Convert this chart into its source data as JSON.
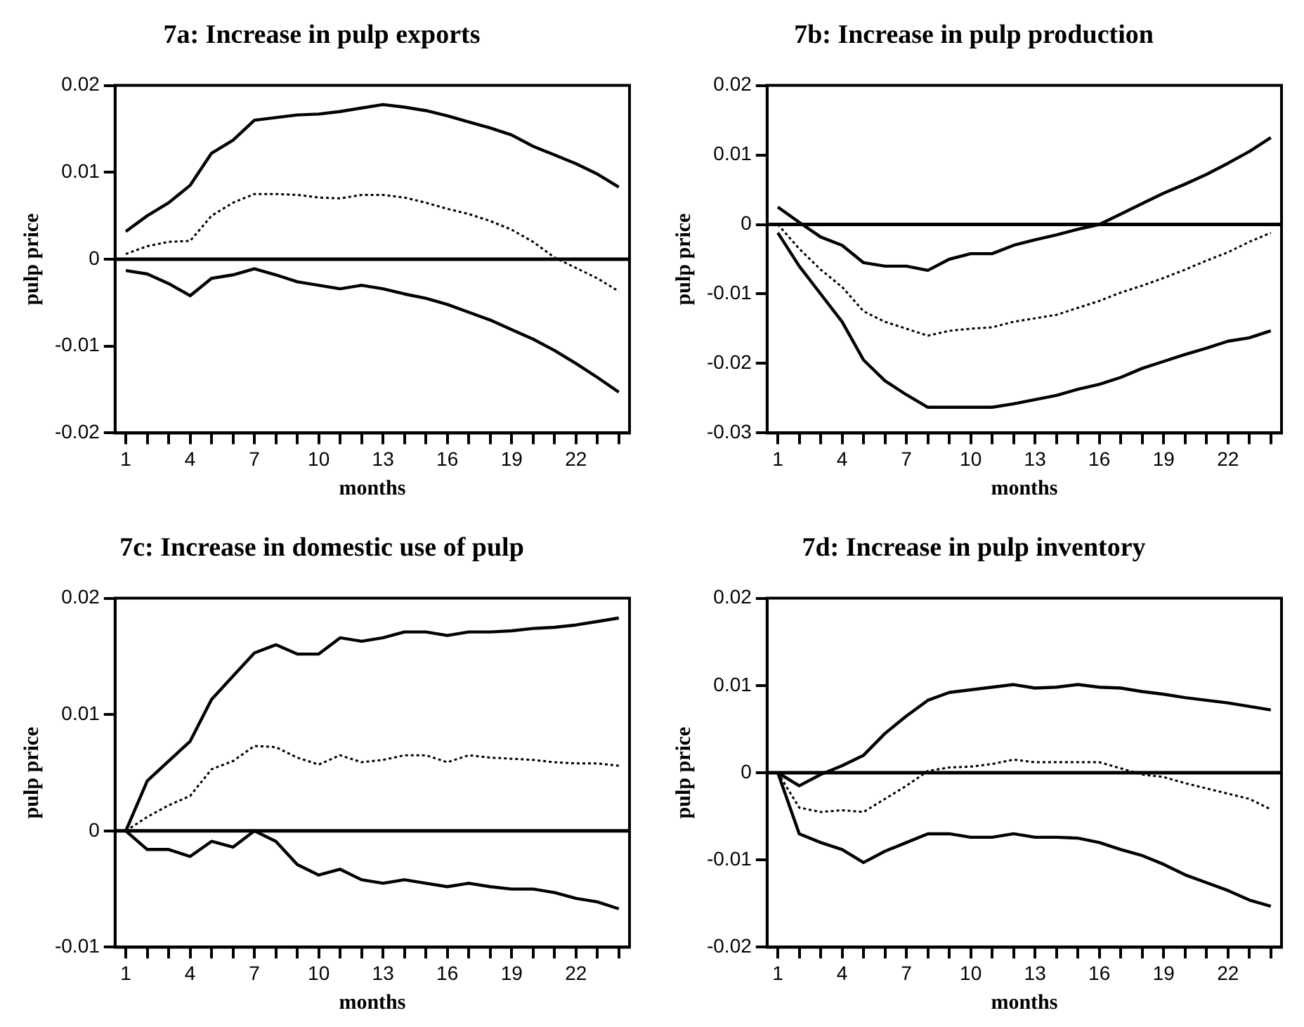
{
  "chart_data": [
    {
      "type": "line",
      "title": "7a: Increase in pulp exports",
      "xlabel": "months",
      "ylabel": "pulp price",
      "marker": "none",
      "grid": false,
      "legend": false,
      "categories": [
        "1",
        null,
        null,
        "4",
        null,
        null,
        "7",
        null,
        null,
        "10",
        null,
        null,
        "13",
        null,
        null,
        "16",
        null,
        null,
        "19",
        null,
        null,
        "22",
        null,
        null
      ],
      "ylim": [
        -0.02,
        0.02
      ],
      "yticks": [
        -0.02,
        -0.01,
        0,
        0.01,
        0.02
      ],
      "ref_lines": [
        {
          "axis": "y",
          "value": 0,
          "color": "#000000"
        }
      ],
      "series": [
        {
          "color": "#000000",
          "line_style": "solid",
          "values": [
            0.0032,
            0.005,
            0.0065,
            0.0085,
            0.0122,
            0.0137,
            0.016,
            0.0163,
            0.0166,
            0.0167,
            0.017,
            0.0174,
            0.0178,
            0.0175,
            0.0171,
            0.0165,
            0.0158,
            0.0151,
            0.0143,
            0.013,
            0.012,
            0.011,
            0.0098,
            0.0083
          ]
        },
        {
          "color": "#000000",
          "line_style": "dotted",
          "values": [
            0.0006,
            0.0015,
            0.002,
            0.0021,
            0.005,
            0.0065,
            0.0075,
            0.0075,
            0.0074,
            0.0071,
            0.007,
            0.0074,
            0.0074,
            0.0071,
            0.0065,
            0.0058,
            0.0052,
            0.0044,
            0.0034,
            0.002,
            0.0002,
            -0.001,
            -0.0022,
            -0.0037
          ]
        },
        {
          "color": "#000000",
          "line_style": "solid",
          "values": [
            -0.0013,
            -0.0017,
            -0.0028,
            -0.0042,
            -0.0022,
            -0.0018,
            -0.0011,
            -0.0018,
            -0.0026,
            -0.003,
            -0.0034,
            -0.003,
            -0.0034,
            -0.004,
            -0.0045,
            -0.0052,
            -0.0061,
            -0.007,
            -0.0081,
            -0.0092,
            -0.0105,
            -0.012,
            -0.0136,
            -0.0153
          ]
        }
      ]
    },
    {
      "type": "line",
      "title": "7b: Increase in pulp production",
      "xlabel": "months",
      "ylabel": "pulp price",
      "marker": "none",
      "grid": false,
      "legend": false,
      "categories": [
        "1",
        null,
        null,
        "4",
        null,
        null,
        "7",
        null,
        null,
        "10",
        null,
        null,
        "13",
        null,
        null,
        "16",
        null,
        null,
        "19",
        null,
        null,
        "22",
        null,
        null
      ],
      "ylim": [
        -0.03,
        0.02
      ],
      "yticks": [
        -0.03,
        -0.02,
        -0.01,
        0,
        0.01,
        0.02
      ],
      "ref_lines": [
        {
          "axis": "y",
          "value": 0,
          "color": "#000000"
        }
      ],
      "series": [
        {
          "color": "#000000",
          "line_style": "solid",
          "values": [
            0.0025,
            0.0003,
            -0.0018,
            -0.003,
            -0.0055,
            -0.006,
            -0.006,
            -0.0066,
            -0.005,
            -0.0042,
            -0.0042,
            -0.003,
            -0.0022,
            -0.0015,
            -0.0007,
            0.0,
            0.0015,
            0.003,
            0.0045,
            0.0058,
            0.0072,
            0.0088,
            0.0105,
            0.0125
          ]
        },
        {
          "color": "#000000",
          "line_style": "dotted",
          "values": [
            0.0,
            -0.0035,
            -0.0065,
            -0.009,
            -0.0125,
            -0.014,
            -0.015,
            -0.016,
            -0.0153,
            -0.015,
            -0.0148,
            -0.014,
            -0.0135,
            -0.013,
            -0.012,
            -0.011,
            -0.0098,
            -0.0088,
            -0.0077,
            -0.0065,
            -0.0052,
            -0.004,
            -0.0025,
            -0.0012
          ]
        },
        {
          "color": "#000000",
          "line_style": "solid",
          "values": [
            -0.0012,
            -0.006,
            -0.01,
            -0.014,
            -0.0195,
            -0.0225,
            -0.0245,
            -0.0263,
            -0.0263,
            -0.0263,
            -0.0263,
            -0.0258,
            -0.0252,
            -0.0246,
            -0.0237,
            -0.023,
            -0.022,
            -0.0207,
            -0.0197,
            -0.0187,
            -0.0178,
            -0.0168,
            -0.0163,
            -0.0153
          ]
        }
      ]
    },
    {
      "type": "line",
      "title": "7c: Increase in domestic use of pulp",
      "xlabel": "months",
      "ylabel": "pulp price",
      "marker": "none",
      "grid": false,
      "legend": false,
      "categories": [
        "1",
        null,
        null,
        "4",
        null,
        null,
        "7",
        null,
        null,
        "10",
        null,
        null,
        "13",
        null,
        null,
        "16",
        null,
        null,
        "19",
        null,
        null,
        "22",
        null,
        null
      ],
      "ylim": [
        -0.01,
        0.02
      ],
      "yticks": [
        -0.01,
        0,
        0.01,
        0.02
      ],
      "ref_lines": [
        {
          "axis": "y",
          "value": 0,
          "color": "#000000"
        }
      ],
      "series": [
        {
          "color": "#000000",
          "line_style": "solid",
          "values": [
            0.0,
            0.0043,
            0.006,
            0.0077,
            0.0113,
            0.0133,
            0.0153,
            0.016,
            0.0152,
            0.0152,
            0.0166,
            0.0163,
            0.0166,
            0.0171,
            0.0171,
            0.0168,
            0.0171,
            0.0171,
            0.0172,
            0.0174,
            0.0175,
            0.0177,
            0.018,
            0.0183
          ]
        },
        {
          "color": "#000000",
          "line_style": "dotted",
          "values": [
            0.0,
            0.0012,
            0.0022,
            0.003,
            0.0053,
            0.006,
            0.0073,
            0.0072,
            0.0063,
            0.0057,
            0.0065,
            0.0059,
            0.0061,
            0.0065,
            0.0065,
            0.0059,
            0.0065,
            0.0063,
            0.0062,
            0.0061,
            0.0059,
            0.0058,
            0.0058,
            0.0056
          ]
        },
        {
          "color": "#000000",
          "line_style": "solid",
          "values": [
            0.0,
            -0.0016,
            -0.0016,
            -0.0022,
            -0.0009,
            -0.0014,
            0.0,
            -0.0009,
            -0.0029,
            -0.0038,
            -0.0033,
            -0.0042,
            -0.0045,
            -0.0042,
            -0.0045,
            -0.0048,
            -0.0045,
            -0.0048,
            -0.005,
            -0.005,
            -0.0053,
            -0.0058,
            -0.0061,
            -0.0067
          ]
        }
      ]
    },
    {
      "type": "line",
      "title": "7d: Increase in pulp inventory",
      "xlabel": "months",
      "ylabel": "pulp price",
      "marker": "none",
      "grid": false,
      "legend": false,
      "categories": [
        "1",
        null,
        null,
        "4",
        null,
        null,
        "7",
        null,
        null,
        "10",
        null,
        null,
        "13",
        null,
        null,
        "16",
        null,
        null,
        "19",
        null,
        null,
        "22",
        null,
        null
      ],
      "ylim": [
        -0.02,
        0.02
      ],
      "yticks": [
        -0.02,
        -0.01,
        0,
        0.01,
        0.02
      ],
      "ref_lines": [
        {
          "axis": "y",
          "value": 0,
          "color": "#000000"
        }
      ],
      "series": [
        {
          "color": "#000000",
          "line_style": "solid",
          "values": [
            0.0,
            -0.0015,
            -0.0002,
            0.0008,
            0.002,
            0.0045,
            0.0065,
            0.0083,
            0.0092,
            0.0095,
            0.0098,
            0.0101,
            0.0097,
            0.0098,
            0.0101,
            0.0098,
            0.0097,
            0.0093,
            0.009,
            0.0086,
            0.0083,
            0.008,
            0.0076,
            0.0072
          ]
        },
        {
          "color": "#000000",
          "line_style": "dotted",
          "values": [
            0.0,
            -0.004,
            -0.0045,
            -0.0043,
            -0.0045,
            -0.003,
            -0.0015,
            0.0002,
            0.0006,
            0.0007,
            0.001,
            0.0015,
            0.0012,
            0.0012,
            0.0012,
            0.0012,
            0.0005,
            -0.0002,
            -0.0005,
            -0.0012,
            -0.0018,
            -0.0024,
            -0.003,
            -0.0042
          ]
        },
        {
          "color": "#000000",
          "line_style": "solid",
          "values": [
            0.0,
            -0.007,
            -0.008,
            -0.0088,
            -0.0103,
            -0.009,
            -0.008,
            -0.007,
            -0.007,
            -0.0074,
            -0.0074,
            -0.007,
            -0.0074,
            -0.0074,
            -0.0075,
            -0.008,
            -0.0088,
            -0.0095,
            -0.0105,
            -0.0117,
            -0.0126,
            -0.0135,
            -0.0146,
            -0.0153
          ]
        }
      ]
    }
  ]
}
